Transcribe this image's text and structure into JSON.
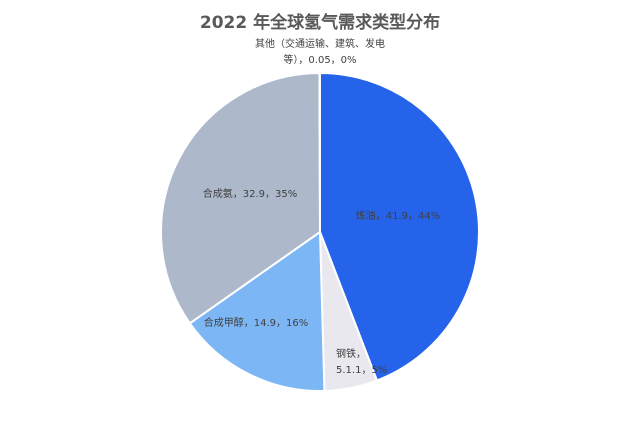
{
  "chart_data": {
    "type": "pie",
    "title": "2022 年全球氢气需求类型分布",
    "slices": [
      {
        "label": "炼油",
        "value": 41.9,
        "percent": "44%",
        "color": "#2563EB",
        "label_lines": [
          "炼油，41.9，44%"
        ]
      },
      {
        "label": "钢铁",
        "value": 5.11,
        "percent": "5%",
        "color": "#E8E8EE",
        "label_lines": [
          "钢铁，",
          "5.1.1，5%"
        ]
      },
      {
        "label": "合成甲醇",
        "value": 14.9,
        "percent": "16%",
        "color": "#7DB6F5",
        "label_lines": [
          "合成甲醇，14.9，16%"
        ]
      },
      {
        "label": "合成氨",
        "value": 32.9,
        "percent": "35%",
        "color": "#ADB9CA",
        "label_lines": [
          "合成氨，32.9，35%"
        ]
      },
      {
        "label": "其他（交通运输、建筑、发电等）",
        "value": 0.05,
        "percent": "0%",
        "color": "#F2C14E",
        "label_lines": [
          "其他（交通运输、建筑、发电",
          "等），0.05，0%"
        ]
      }
    ],
    "legend": "none"
  }
}
